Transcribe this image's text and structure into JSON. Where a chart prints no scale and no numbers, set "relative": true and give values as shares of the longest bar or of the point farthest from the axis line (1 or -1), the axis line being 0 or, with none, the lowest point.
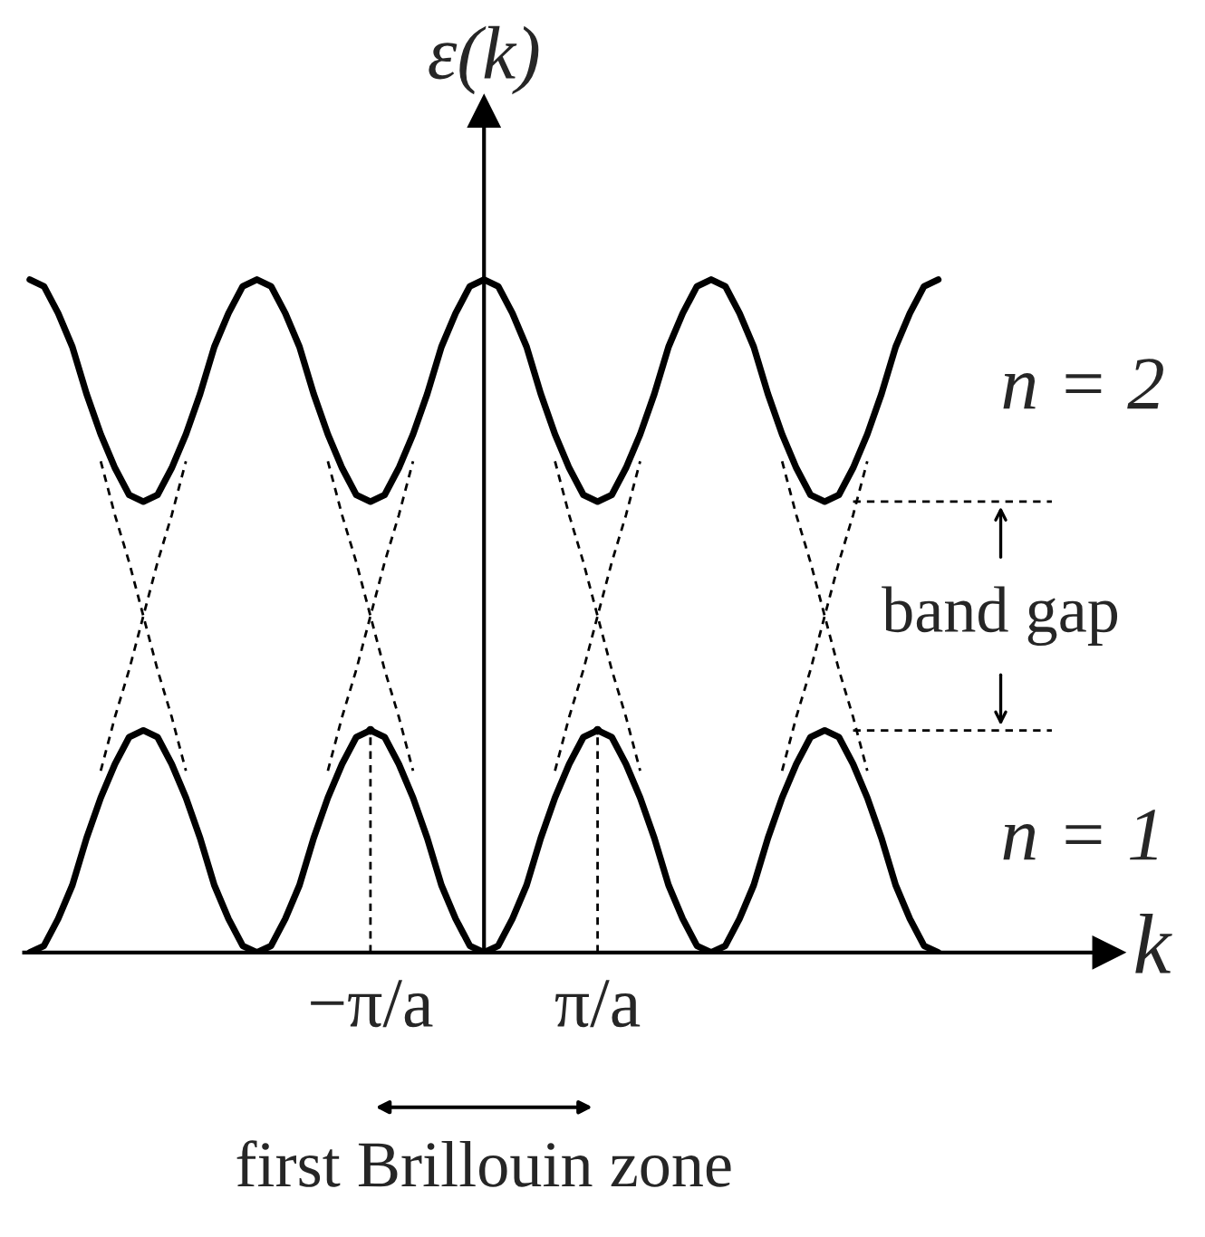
{
  "chart_data": {
    "type": "line",
    "relative": true,
    "xlabel": "k",
    "ylabel": "ε(k)",
    "categories": [
      null,
      null,
      null,
      null,
      null,
      null,
      null,
      null,
      null,
      null,
      null,
      null,
      null,
      null,
      null,
      null,
      null,
      null,
      null,
      null,
      null,
      null,
      null,
      null,
      "−π/a",
      null,
      null,
      null,
      null,
      null,
      null,
      null,
      null,
      null,
      null,
      null,
      null,
      null,
      null,
      null,
      "π/a",
      null,
      null,
      null,
      null,
      null,
      null,
      null,
      null,
      null,
      null,
      null,
      null,
      null,
      null,
      null,
      null,
      null,
      null,
      null,
      null,
      null,
      null,
      null,
      null,
      null,
      null,
      null,
      null,
      null,
      null,
      null,
      null,
      null,
      null,
      null,
      null
    ],
    "series": [
      {
        "name": "n = 2",
        "color": "#000000",
        "values": [
          1,
          0.99,
          0.95,
          0.9,
          0.83,
          0.77,
          0.72,
          0.68,
          0.67,
          0.68,
          0.72,
          0.77,
          0.83,
          0.9,
          0.95,
          0.99,
          1,
          0.99,
          0.95,
          0.9,
          0.83,
          0.77,
          0.72,
          0.68,
          0.67,
          0.68,
          0.72,
          0.77,
          0.83,
          0.9,
          0.95,
          0.99,
          1,
          0.99,
          0.95,
          0.9,
          0.83,
          0.77,
          0.72,
          0.68,
          0.67,
          0.68,
          0.72,
          0.77,
          0.83,
          0.9,
          0.95,
          0.99,
          1,
          0.99,
          0.95,
          0.9,
          0.83,
          0.77,
          0.72,
          0.68,
          0.67,
          0.68,
          0.72,
          0.77,
          0.83,
          0.9,
          0.95,
          0.99,
          1,
          null,
          null,
          null,
          null,
          null,
          null,
          null,
          null,
          null,
          null,
          null,
          null
        ]
      },
      {
        "name": "n = 1",
        "color": "#000000",
        "values": [
          0,
          0.01,
          0.05,
          0.1,
          0.17,
          0.23,
          0.28,
          0.32,
          0.33,
          0.32,
          0.28,
          0.23,
          0.17,
          0.1,
          0.05,
          0.01,
          0,
          0.01,
          0.05,
          0.1,
          0.17,
          0.23,
          0.28,
          0.32,
          0.33,
          0.32,
          0.28,
          0.23,
          0.17,
          0.1,
          0.05,
          0.01,
          0,
          0.01,
          0.05,
          0.1,
          0.17,
          0.23,
          0.28,
          0.32,
          0.33,
          0.32,
          0.28,
          0.23,
          0.17,
          0.1,
          0.05,
          0.01,
          0,
          0.01,
          0.05,
          0.1,
          0.17,
          0.23,
          0.28,
          0.32,
          0.33,
          0.32,
          0.28,
          0.23,
          0.17,
          0.1,
          0.05,
          0.01,
          0,
          null,
          null,
          null,
          null,
          null,
          null,
          null,
          null,
          null,
          null,
          null,
          null
        ]
      },
      {
        "color": "#000000",
        "line_style": "dashed",
        "values": [
          null,
          null,
          null,
          null,
          null,
          0.27,
          0.35,
          0.42,
          0.5,
          0.58,
          0.65,
          0.73,
          null,
          null,
          null,
          null,
          null,
          null,
          null,
          null,
          null,
          0.27,
          0.35,
          0.42,
          0.5,
          0.58,
          0.65,
          0.73,
          null,
          null,
          null,
          null,
          null,
          null,
          null,
          null,
          null,
          0.27,
          0.35,
          0.42,
          0.5,
          0.58,
          0.65,
          0.73,
          null,
          null,
          null,
          null,
          null,
          null,
          null,
          null,
          null,
          0.27,
          0.35,
          0.42,
          0.5,
          0.58,
          0.65,
          0.73,
          null,
          null,
          null,
          null,
          null,
          null,
          null,
          null,
          null,
          null,
          null,
          null,
          null,
          null,
          null,
          null,
          null
        ]
      },
      {
        "color": "#000000",
        "line_style": "dashed",
        "values": [
          null,
          null,
          null,
          null,
          null,
          0.73,
          0.65,
          0.58,
          0.5,
          0.42,
          0.35,
          0.27,
          null,
          null,
          null,
          null,
          null,
          null,
          null,
          null,
          null,
          0.73,
          0.65,
          0.58,
          0.5,
          0.42,
          0.35,
          0.27,
          null,
          null,
          null,
          null,
          null,
          null,
          null,
          null,
          null,
          0.73,
          0.65,
          0.58,
          0.5,
          0.42,
          0.35,
          0.27,
          null,
          null,
          null,
          null,
          null,
          null,
          null,
          null,
          null,
          0.73,
          0.65,
          0.58,
          0.5,
          0.42,
          0.35,
          0.27,
          null,
          null,
          null,
          null,
          null,
          null,
          null,
          null,
          null,
          null,
          null,
          null,
          null,
          null,
          null,
          null,
          null
        ]
      },
      {
        "color": "#000000",
        "line_style": "dashed",
        "values": [
          null,
          null,
          null,
          null,
          null,
          null,
          null,
          null,
          null,
          null,
          null,
          null,
          null,
          null,
          null,
          null,
          null,
          null,
          null,
          null,
          null,
          null,
          null,
          null,
          null,
          null,
          null,
          null,
          null,
          null,
          null,
          null,
          null,
          null,
          null,
          null,
          null,
          null,
          null,
          null,
          null,
          null,
          null,
          null,
          null,
          null,
          null,
          null,
          null,
          null,
          null,
          null,
          null,
          null,
          null,
          null,
          null,
          null,
          0.67,
          0.67,
          0.67,
          0.67,
          0.67,
          0.67,
          0.67,
          0.67,
          0.67,
          0.67,
          0.67,
          0.67,
          0.67,
          0.67,
          0.67,
          null,
          null,
          null,
          null
        ]
      },
      {
        "color": "#000000",
        "line_style": "dashed",
        "values": [
          null,
          null,
          null,
          null,
          null,
          null,
          null,
          null,
          null,
          null,
          null,
          null,
          null,
          null,
          null,
          null,
          null,
          null,
          null,
          null,
          null,
          null,
          null,
          null,
          null,
          null,
          null,
          null,
          null,
          null,
          null,
          null,
          null,
          null,
          null,
          null,
          null,
          null,
          null,
          null,
          null,
          null,
          null,
          null,
          null,
          null,
          null,
          null,
          null,
          null,
          null,
          null,
          null,
          null,
          null,
          null,
          null,
          null,
          0.33,
          0.33,
          0.33,
          0.33,
          0.33,
          0.33,
          0.33,
          0.33,
          0.33,
          0.33,
          0.33,
          0.33,
          0.33,
          0.33,
          0.33,
          null,
          null,
          null,
          null
        ]
      },
      {
        "type": "lollipop",
        "color": "#000000",
        "line_style": "dashed",
        "values": [
          null,
          null,
          null,
          null,
          null,
          null,
          null,
          null,
          null,
          null,
          null,
          null,
          null,
          null,
          null,
          null,
          null,
          null,
          null,
          null,
          null,
          null,
          null,
          null,
          0.33,
          null,
          null,
          null,
          null,
          null,
          null,
          null,
          null,
          null,
          null,
          null,
          null,
          null,
          null,
          null,
          0.33,
          null,
          null,
          null,
          null,
          null,
          null,
          null,
          null,
          null,
          null,
          null,
          null,
          null,
          null,
          null,
          null,
          null,
          null,
          null,
          null,
          null,
          null,
          null,
          null,
          null,
          null,
          null,
          null,
          null,
          null,
          null,
          null,
          null,
          null,
          null,
          null
        ]
      }
    ],
    "tick_labels": "x",
    "annotations": [
      "band gap",
      "first Brillouin zone"
    ],
    "grid": false,
    "legend": "right"
  }
}
